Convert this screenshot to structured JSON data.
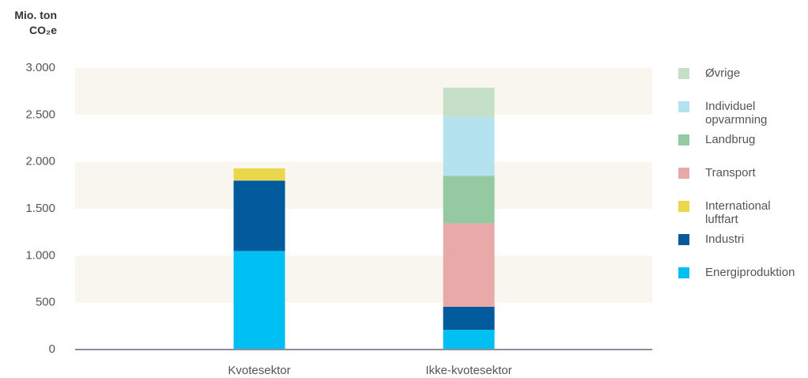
{
  "chart_data": {
    "type": "stacked-bar",
    "y_axis_title": "Mio. ton CO₂e",
    "categories": [
      "Kvotesektor",
      "Ikke-kvotesektor"
    ],
    "series": [
      {
        "name": "Energiproduktion",
        "color": "#00bff3",
        "values": [
          1050,
          210
        ]
      },
      {
        "name": "Industri",
        "color": "#005a9c",
        "values": [
          750,
          245
        ]
      },
      {
        "name": "International luftfart",
        "color": "#ebd84a",
        "values": [
          130,
          0
        ]
      },
      {
        "name": "Transport",
        "color": "#e8aaa8",
        "values": [
          0,
          890
        ]
      },
      {
        "name": "Landbrug",
        "color": "#94c9a2",
        "values": [
          0,
          505
        ]
      },
      {
        "name": "Individuel opvarmning",
        "color": "#b5e2ef",
        "values": [
          0,
          630
        ]
      },
      {
        "name": "Øvrige",
        "color": "#c6e0c8",
        "values": [
          0,
          310
        ]
      }
    ],
    "ylim": [
      0,
      3000
    ],
    "yticks": [
      {
        "value": 0,
        "label": "0"
      },
      {
        "value": 500,
        "label": "500"
      },
      {
        "value": 1000,
        "label": "1.000"
      },
      {
        "value": 1500,
        "label": "1.500"
      },
      {
        "value": 2000,
        "label": "2.000"
      },
      {
        "value": 2500,
        "label": "2.500"
      },
      {
        "value": 3000,
        "label": "3.000"
      }
    ],
    "grid": "bands",
    "band_color": "#f9f5ef",
    "legend_position": "right"
  }
}
